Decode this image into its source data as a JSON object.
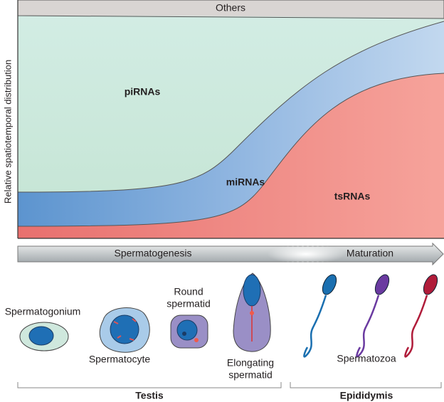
{
  "chart": {
    "y_axis_label": "Relative spatiotemporal distribution",
    "layers": [
      {
        "label": "Others"
      },
      {
        "label": "piRNAs"
      },
      {
        "label": "miRNAs"
      },
      {
        "label": "tsRNAs"
      }
    ]
  },
  "timeline": {
    "stages": [
      {
        "label": "Spermatogenesis"
      },
      {
        "label": "Maturation"
      }
    ]
  },
  "cells": [
    {
      "label_lines": [
        "Spermatogonium"
      ]
    },
    {
      "label_lines": [
        "Spermatocyte"
      ]
    },
    {
      "label_lines": [
        "Round",
        "spermatid"
      ]
    },
    {
      "label_lines": [
        "Elongating",
        "spermatid"
      ]
    },
    {
      "label_lines": [
        "Spermatozoa"
      ]
    }
  ],
  "regions": [
    {
      "label": "Testis"
    },
    {
      "label": "Epididymis"
    }
  ]
}
